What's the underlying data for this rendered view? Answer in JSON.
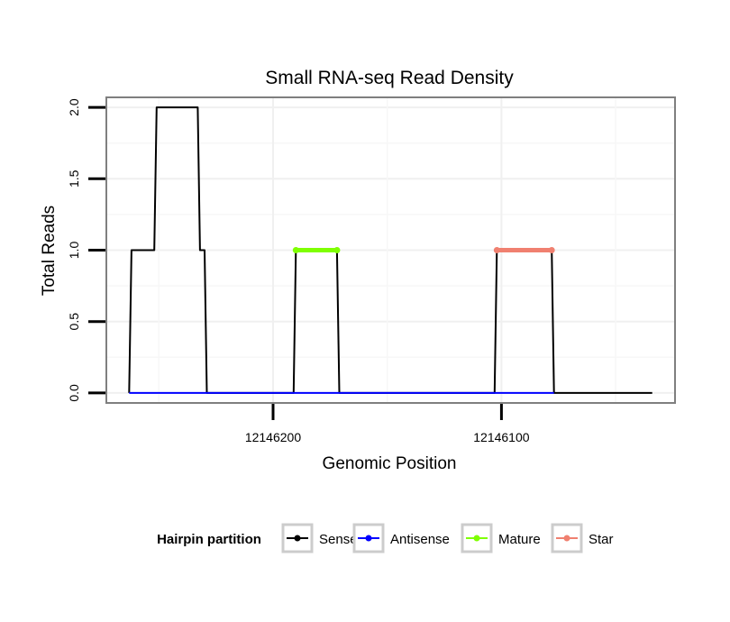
{
  "chart_data": {
    "type": "line",
    "title": "Small RNA-seq Read Density",
    "xlabel": "Genomic Position",
    "ylabel": "Total Reads",
    "x_reversed": true,
    "xlim": [
      12146273,
      12146024
    ],
    "ylim": [
      -0.07,
      2.07
    ],
    "x_ticks": [
      12146200,
      12146100
    ],
    "x_tick_labels": [
      "12146200",
      "12146100"
    ],
    "y_ticks": [
      0,
      0.5,
      1,
      1.5,
      2
    ],
    "y_tick_labels": [
      "0.0",
      "0.5",
      "1.0",
      "1.5",
      "2.0"
    ],
    "grid": true,
    "legend": {
      "title": "Hairpin partition",
      "position": "bottom",
      "items": [
        {
          "label": "Sense",
          "color": "#000000"
        },
        {
          "label": "Antisense",
          "color": "#0000ff"
        },
        {
          "label": "Mature",
          "color": "#7fff00"
        },
        {
          "label": "Star",
          "color": "#f08070"
        }
      ]
    },
    "series": [
      {
        "name": "Sense",
        "color": "#000000",
        "x": [
          12146263,
          12146262,
          12146252,
          12146251,
          12146233,
          12146232,
          12146230,
          12146229,
          12146191,
          12146190,
          12146172,
          12146171,
          12146103,
          12146102,
          12146078,
          12146077,
          12146034
        ],
        "y": [
          0,
          1,
          1,
          2,
          2,
          1,
          1,
          0,
          0,
          1,
          1,
          0,
          0,
          1,
          1,
          0,
          0
        ]
      },
      {
        "name": "Antisense",
        "color": "#0000ff",
        "x": [
          12146263,
          12146230,
          12146229,
          12146191,
          12146190,
          12146171,
          12146103,
          12146102,
          12146077
        ],
        "y": [
          0,
          0,
          0,
          0,
          0,
          0,
          0,
          0,
          0
        ]
      },
      {
        "name": "Mature",
        "color": "#7fff00",
        "x": [
          12146190,
          12146172
        ],
        "y": [
          1,
          1
        ]
      },
      {
        "name": "Star",
        "color": "#f08070",
        "x": [
          12146102,
          12146078
        ],
        "y": [
          1,
          1
        ]
      }
    ]
  }
}
